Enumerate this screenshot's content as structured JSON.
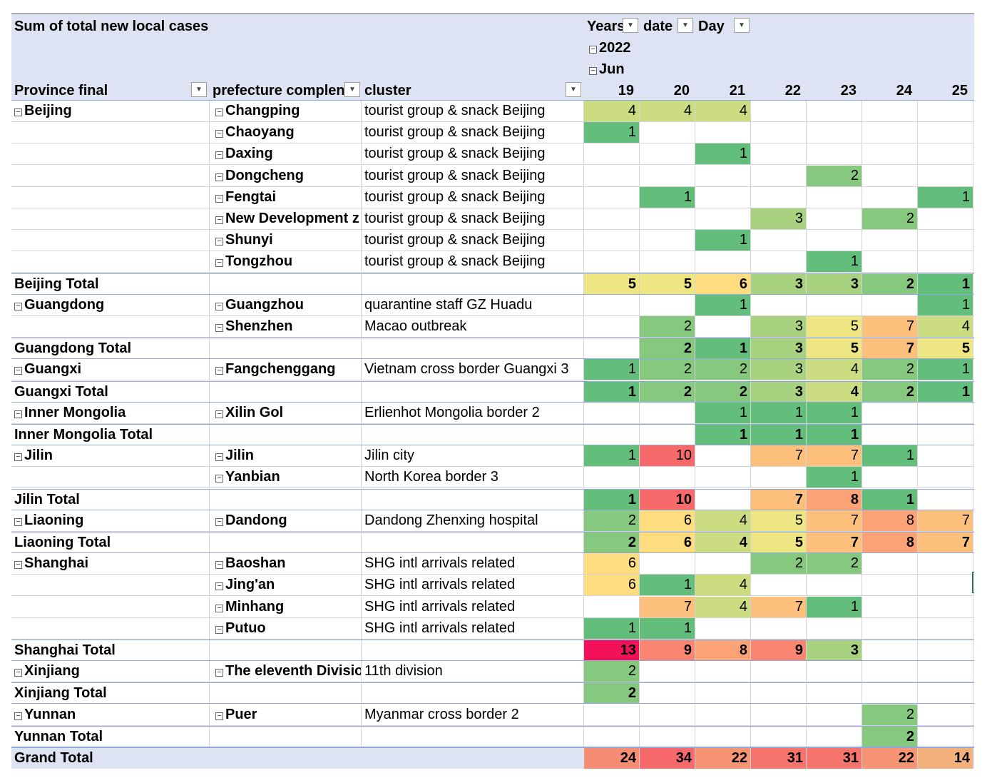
{
  "pivot": {
    "value_label": "Sum of total new local cases",
    "col_fields": {
      "years": "Years",
      "date": "date",
      "day": "Day"
    },
    "year": "2022",
    "month": "Jun",
    "row_headers": {
      "province": "Province final",
      "prefecture": "prefecture complen",
      "cluster": "cluster"
    },
    "days": [
      "19",
      "20",
      "21",
      "22",
      "23",
      "24",
      "25"
    ],
    "colors": {
      "header_bg": "#dde3f2",
      "scale_low": "#63be7b",
      "scale_mid": "#ffeb84",
      "scale_high": "#f8696b"
    },
    "icons": {
      "filter": "filter-dropdown-icon",
      "dropdown": "chevron-down-icon",
      "collapse": "collapse-minus-icon"
    },
    "rows": [
      {
        "type": "data",
        "province": "Beijing",
        "prefecture": "Changping",
        "cluster": "tourist group & snack Beijing",
        "values": [
          4,
          4,
          4,
          null,
          null,
          null,
          null
        ]
      },
      {
        "type": "data",
        "province": "",
        "prefecture": "Chaoyang",
        "cluster": "tourist group & snack Beijing",
        "values": [
          1,
          null,
          null,
          null,
          null,
          null,
          null
        ]
      },
      {
        "type": "data",
        "province": "",
        "prefecture": "Daxing",
        "cluster": "tourist group & snack Beijing",
        "values": [
          null,
          null,
          1,
          null,
          null,
          null,
          null
        ]
      },
      {
        "type": "data",
        "province": "",
        "prefecture": "Dongcheng",
        "cluster": "tourist group & snack Beijing",
        "values": [
          null,
          null,
          null,
          null,
          2,
          null,
          null
        ]
      },
      {
        "type": "data",
        "province": "",
        "prefecture": "Fengtai",
        "cluster": "tourist group & snack Beijing",
        "values": [
          null,
          1,
          null,
          null,
          null,
          null,
          1
        ]
      },
      {
        "type": "data",
        "province": "",
        "prefecture": "New Development z",
        "cluster": "tourist group & snack Beijing",
        "values": [
          null,
          null,
          null,
          3,
          null,
          2,
          null
        ]
      },
      {
        "type": "data",
        "province": "",
        "prefecture": "Shunyi",
        "cluster": "tourist group & snack Beijing",
        "values": [
          null,
          null,
          1,
          null,
          null,
          null,
          null
        ]
      },
      {
        "type": "data",
        "province": "",
        "prefecture": "Tongzhou",
        "cluster": "tourist group & snack Beijing",
        "values": [
          null,
          null,
          null,
          null,
          1,
          null,
          null
        ]
      },
      {
        "type": "total",
        "province": "Beijing Total",
        "values": [
          5,
          5,
          6,
          3,
          3,
          2,
          1
        ]
      },
      {
        "type": "data",
        "province": "Guangdong",
        "prefecture": "Guangzhou",
        "cluster": "quarantine staff GZ Huadu",
        "values": [
          null,
          null,
          1,
          null,
          null,
          null,
          1
        ]
      },
      {
        "type": "data",
        "province": "",
        "prefecture": "Shenzhen",
        "cluster": "Macao outbreak",
        "values": [
          null,
          2,
          null,
          3,
          5,
          7,
          4
        ]
      },
      {
        "type": "total",
        "province": "Guangdong Total",
        "values": [
          null,
          2,
          1,
          3,
          5,
          7,
          5
        ]
      },
      {
        "type": "data",
        "province": "Guangxi",
        "prefecture": "Fangchenggang",
        "cluster": "Vietnam cross border Guangxi 3",
        "values": [
          1,
          2,
          2,
          3,
          4,
          2,
          1
        ]
      },
      {
        "type": "total",
        "province": "Guangxi Total",
        "values": [
          1,
          2,
          2,
          3,
          4,
          2,
          1
        ]
      },
      {
        "type": "data",
        "province": "Inner Mongolia",
        "prefecture": "Xilin Gol",
        "cluster": "Erlienhot Mongolia border 2",
        "values": [
          null,
          null,
          1,
          1,
          1,
          null,
          null
        ]
      },
      {
        "type": "total",
        "province": "Inner Mongolia Total",
        "values": [
          null,
          null,
          1,
          1,
          1,
          null,
          null
        ]
      },
      {
        "type": "data",
        "province": "Jilin",
        "prefecture": "Jilin",
        "cluster": "Jilin city",
        "values": [
          1,
          10,
          null,
          7,
          7,
          1,
          null
        ]
      },
      {
        "type": "data",
        "province": "",
        "prefecture": "Yanbian",
        "cluster": "North Korea border 3",
        "values": [
          null,
          null,
          null,
          null,
          1,
          null,
          null
        ]
      },
      {
        "type": "total",
        "province": "Jilin Total",
        "values": [
          1,
          10,
          null,
          7,
          8,
          1,
          null
        ]
      },
      {
        "type": "data",
        "province": "Liaoning",
        "prefecture": "Dandong",
        "cluster": "Dandong Zhenxing hospital",
        "values": [
          2,
          6,
          4,
          5,
          7,
          8,
          7
        ]
      },
      {
        "type": "total",
        "province": "Liaoning Total",
        "values": [
          2,
          6,
          4,
          5,
          7,
          8,
          7
        ]
      },
      {
        "type": "data",
        "province": "Shanghai",
        "prefecture": "Baoshan",
        "cluster": "SHG intl arrivals related",
        "values": [
          6,
          null,
          null,
          2,
          2,
          null,
          null
        ]
      },
      {
        "type": "data",
        "province": "",
        "prefecture": "Jing'an",
        "cluster": "SHG intl arrivals related",
        "values": [
          6,
          1,
          4,
          null,
          null,
          null,
          null
        ]
      },
      {
        "type": "data",
        "province": "",
        "prefecture": "Minhang",
        "cluster": "SHG intl arrivals related",
        "values": [
          null,
          7,
          4,
          7,
          1,
          null,
          null
        ]
      },
      {
        "type": "data",
        "province": "",
        "prefecture": "Putuo",
        "cluster": "SHG intl arrivals related",
        "values": [
          1,
          1,
          null,
          null,
          null,
          null,
          null
        ]
      },
      {
        "type": "total",
        "province": "Shanghai Total",
        "values": [
          13,
          9,
          8,
          9,
          3,
          null,
          null
        ]
      },
      {
        "type": "data",
        "province": "Xinjiang",
        "prefecture": "The eleventh Divisio",
        "cluster": "11th division",
        "values": [
          2,
          null,
          null,
          null,
          null,
          null,
          null
        ]
      },
      {
        "type": "total",
        "province": "Xinjiang Total",
        "values": [
          2,
          null,
          null,
          null,
          null,
          null,
          null
        ]
      },
      {
        "type": "data",
        "province": "Yunnan",
        "prefecture": "Puer",
        "cluster": "Myanmar cross border 2",
        "values": [
          null,
          null,
          null,
          null,
          null,
          2,
          null
        ]
      },
      {
        "type": "total",
        "province": "Yunnan Total",
        "values": [
          null,
          null,
          null,
          null,
          null,
          2,
          null
        ]
      },
      {
        "type": "grand",
        "province": "Grand Total",
        "values": [
          24,
          34,
          22,
          31,
          31,
          22,
          14
        ]
      }
    ]
  }
}
